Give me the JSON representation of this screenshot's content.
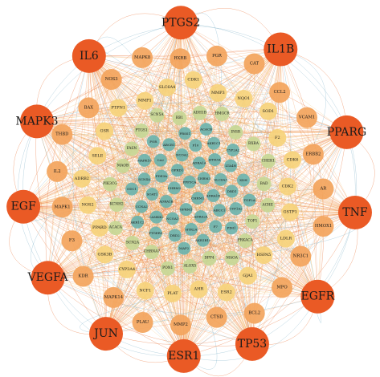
{
  "network": {
    "tiers": [
      {
        "tier": "hub",
        "color": "#ea5a25",
        "nodes": [
          "IL6",
          "PTGS2",
          "IL1B",
          "PPARG",
          "TNF",
          "EGFR",
          "TP53",
          "ESR1",
          "JUN",
          "VEGFA",
          "EGF",
          "MAPK3"
        ]
      },
      {
        "tier": "outer",
        "color": "#f3a45c",
        "nodes": [
          "MAPK1",
          "IL2",
          "THBD",
          "BAX",
          "NOS3",
          "MAPK8",
          "RXRB",
          "PGR",
          "CAT",
          "CCL2",
          "VCAM1",
          "ERBB2",
          "AR",
          "HMOX1",
          "NR3C1",
          "MPO",
          "BCL2",
          "CTSD",
          "MMP2",
          "PLAU",
          "MAPK14",
          "KDR",
          "F3"
        ]
      },
      {
        "tier": "middle",
        "color": "#f6d27b",
        "nodes": [
          "SELE",
          "GSR",
          "PTPN1",
          "MMP1",
          "SLC6A4",
          "CDK1",
          "MMP3",
          "NQO1",
          "SOD1",
          "F2",
          "CDK6",
          "CDK2",
          "GSTP1",
          "LDLR",
          "HSPA5",
          "GJA1",
          "ESR2",
          "AHR",
          "PLAT",
          "NCF1",
          "CYP3A4",
          "GSK3B",
          "PPARD",
          "NOS2",
          "ADRB2"
        ]
      },
      {
        "tier": "inner",
        "color": "#c7d795",
        "nodes": [
          "FASN",
          "PTGS1",
          "SCN5A",
          "RB1",
          "ADH1B",
          "HMGCR",
          "INSR",
          "RXRA",
          "CHEK1",
          "BAD",
          "ACHE",
          "TOP1",
          "PRKACA",
          "MAOA",
          "DPP4",
          "ALOX5",
          "PON1",
          "CHRNA7",
          "SCN2A",
          "ACACA",
          "KCNH2",
          "PIK3CG",
          "MAOB"
        ]
      },
      {
        "tier": "core",
        "color": "#6db3ad",
        "nodes": [
          "PPP3CA",
          "CHRM1",
          "CHRM2",
          "CHRM3",
          "OPRM1",
          "OPRD1",
          "ADRA1D",
          "ADRA1B",
          "ADRA1A",
          "ADRA2A",
          "PDE3A",
          "SLC6A3",
          "NCOA1",
          "NCOA2",
          "ABCC1",
          "SOAT1",
          "HTR3A",
          "HTR2A",
          "CA2",
          "DRD1",
          "CAMKK2",
          "F10",
          "F7",
          "SCN4A",
          "LTA4H",
          "DRD2",
          "ABCB1",
          "CYP1A2",
          "CCNA2",
          "AKR1C1",
          "AKR1B10",
          "MAPK10",
          "XDH",
          "PTGER3",
          "PRSS1",
          "PIM1",
          "ODC1",
          "CYP2A2",
          "MAP2",
          "POR",
          "TOP2A",
          "AKR1C2",
          "ACACB"
        ]
      }
    ]
  }
}
